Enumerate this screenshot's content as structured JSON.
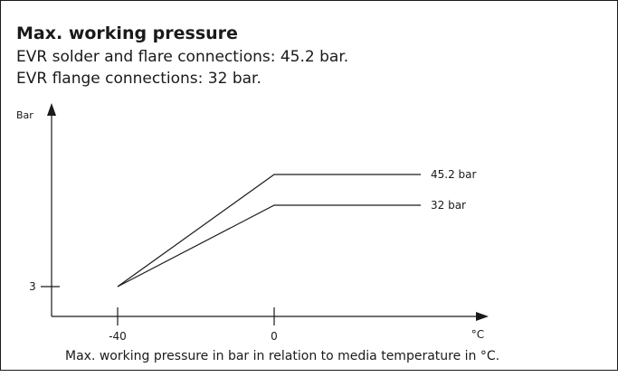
{
  "header": {
    "title": "Max. working pressure",
    "lines": [
      "EVR solder and flare connections: 45.2 bar.",
      "EVR flange connections: 32 bar."
    ]
  },
  "diagram": {
    "y_axis_label": "Bar",
    "y_ticks": [
      "3"
    ],
    "x_ticks": [
      "-40",
      "0"
    ],
    "x_axis_label": "°C",
    "curves": [
      {
        "label": "45.2 bar"
      },
      {
        "label": "32 bar"
      }
    ]
  },
  "caption": "Max. working pressure in bar in relation to media temperature in °C."
}
